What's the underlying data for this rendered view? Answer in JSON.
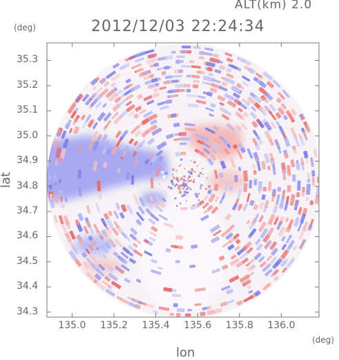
{
  "header": {
    "altitude_label": "ALT(km) 2.0",
    "timestamp": "2012/12/03 22:24:34"
  },
  "axes": {
    "x_unit": "(deg)",
    "y_unit": "(deg)",
    "x_title": "lon",
    "y_title": "lat",
    "x_range": [
      134.88,
      136.18
    ],
    "y_range": [
      34.28,
      35.37
    ],
    "x_ticks": [
      "135.0",
      "135.2",
      "135.4",
      "135.6",
      "135.8",
      "136.0"
    ],
    "x_tick_values": [
      135.0,
      135.2,
      135.4,
      135.6,
      135.8,
      136.0
    ],
    "y_ticks": [
      "35.3",
      "35.2",
      "35.1",
      "35.0",
      "34.9",
      "34.8",
      "34.7",
      "34.6",
      "34.5",
      "34.4",
      "34.3"
    ],
    "y_tick_values": [
      35.3,
      35.2,
      35.1,
      35.0,
      34.9,
      34.8,
      34.7,
      34.6,
      34.5,
      34.4,
      34.3
    ]
  },
  "radar": {
    "center_lon": 135.52,
    "center_lat": 34.82,
    "radius_deg_lat": 0.54,
    "colors": {
      "positive": "#e05050",
      "negative": "#6060e0",
      "neutral": "#f6f2f6",
      "frame": "#777777"
    }
  }
}
